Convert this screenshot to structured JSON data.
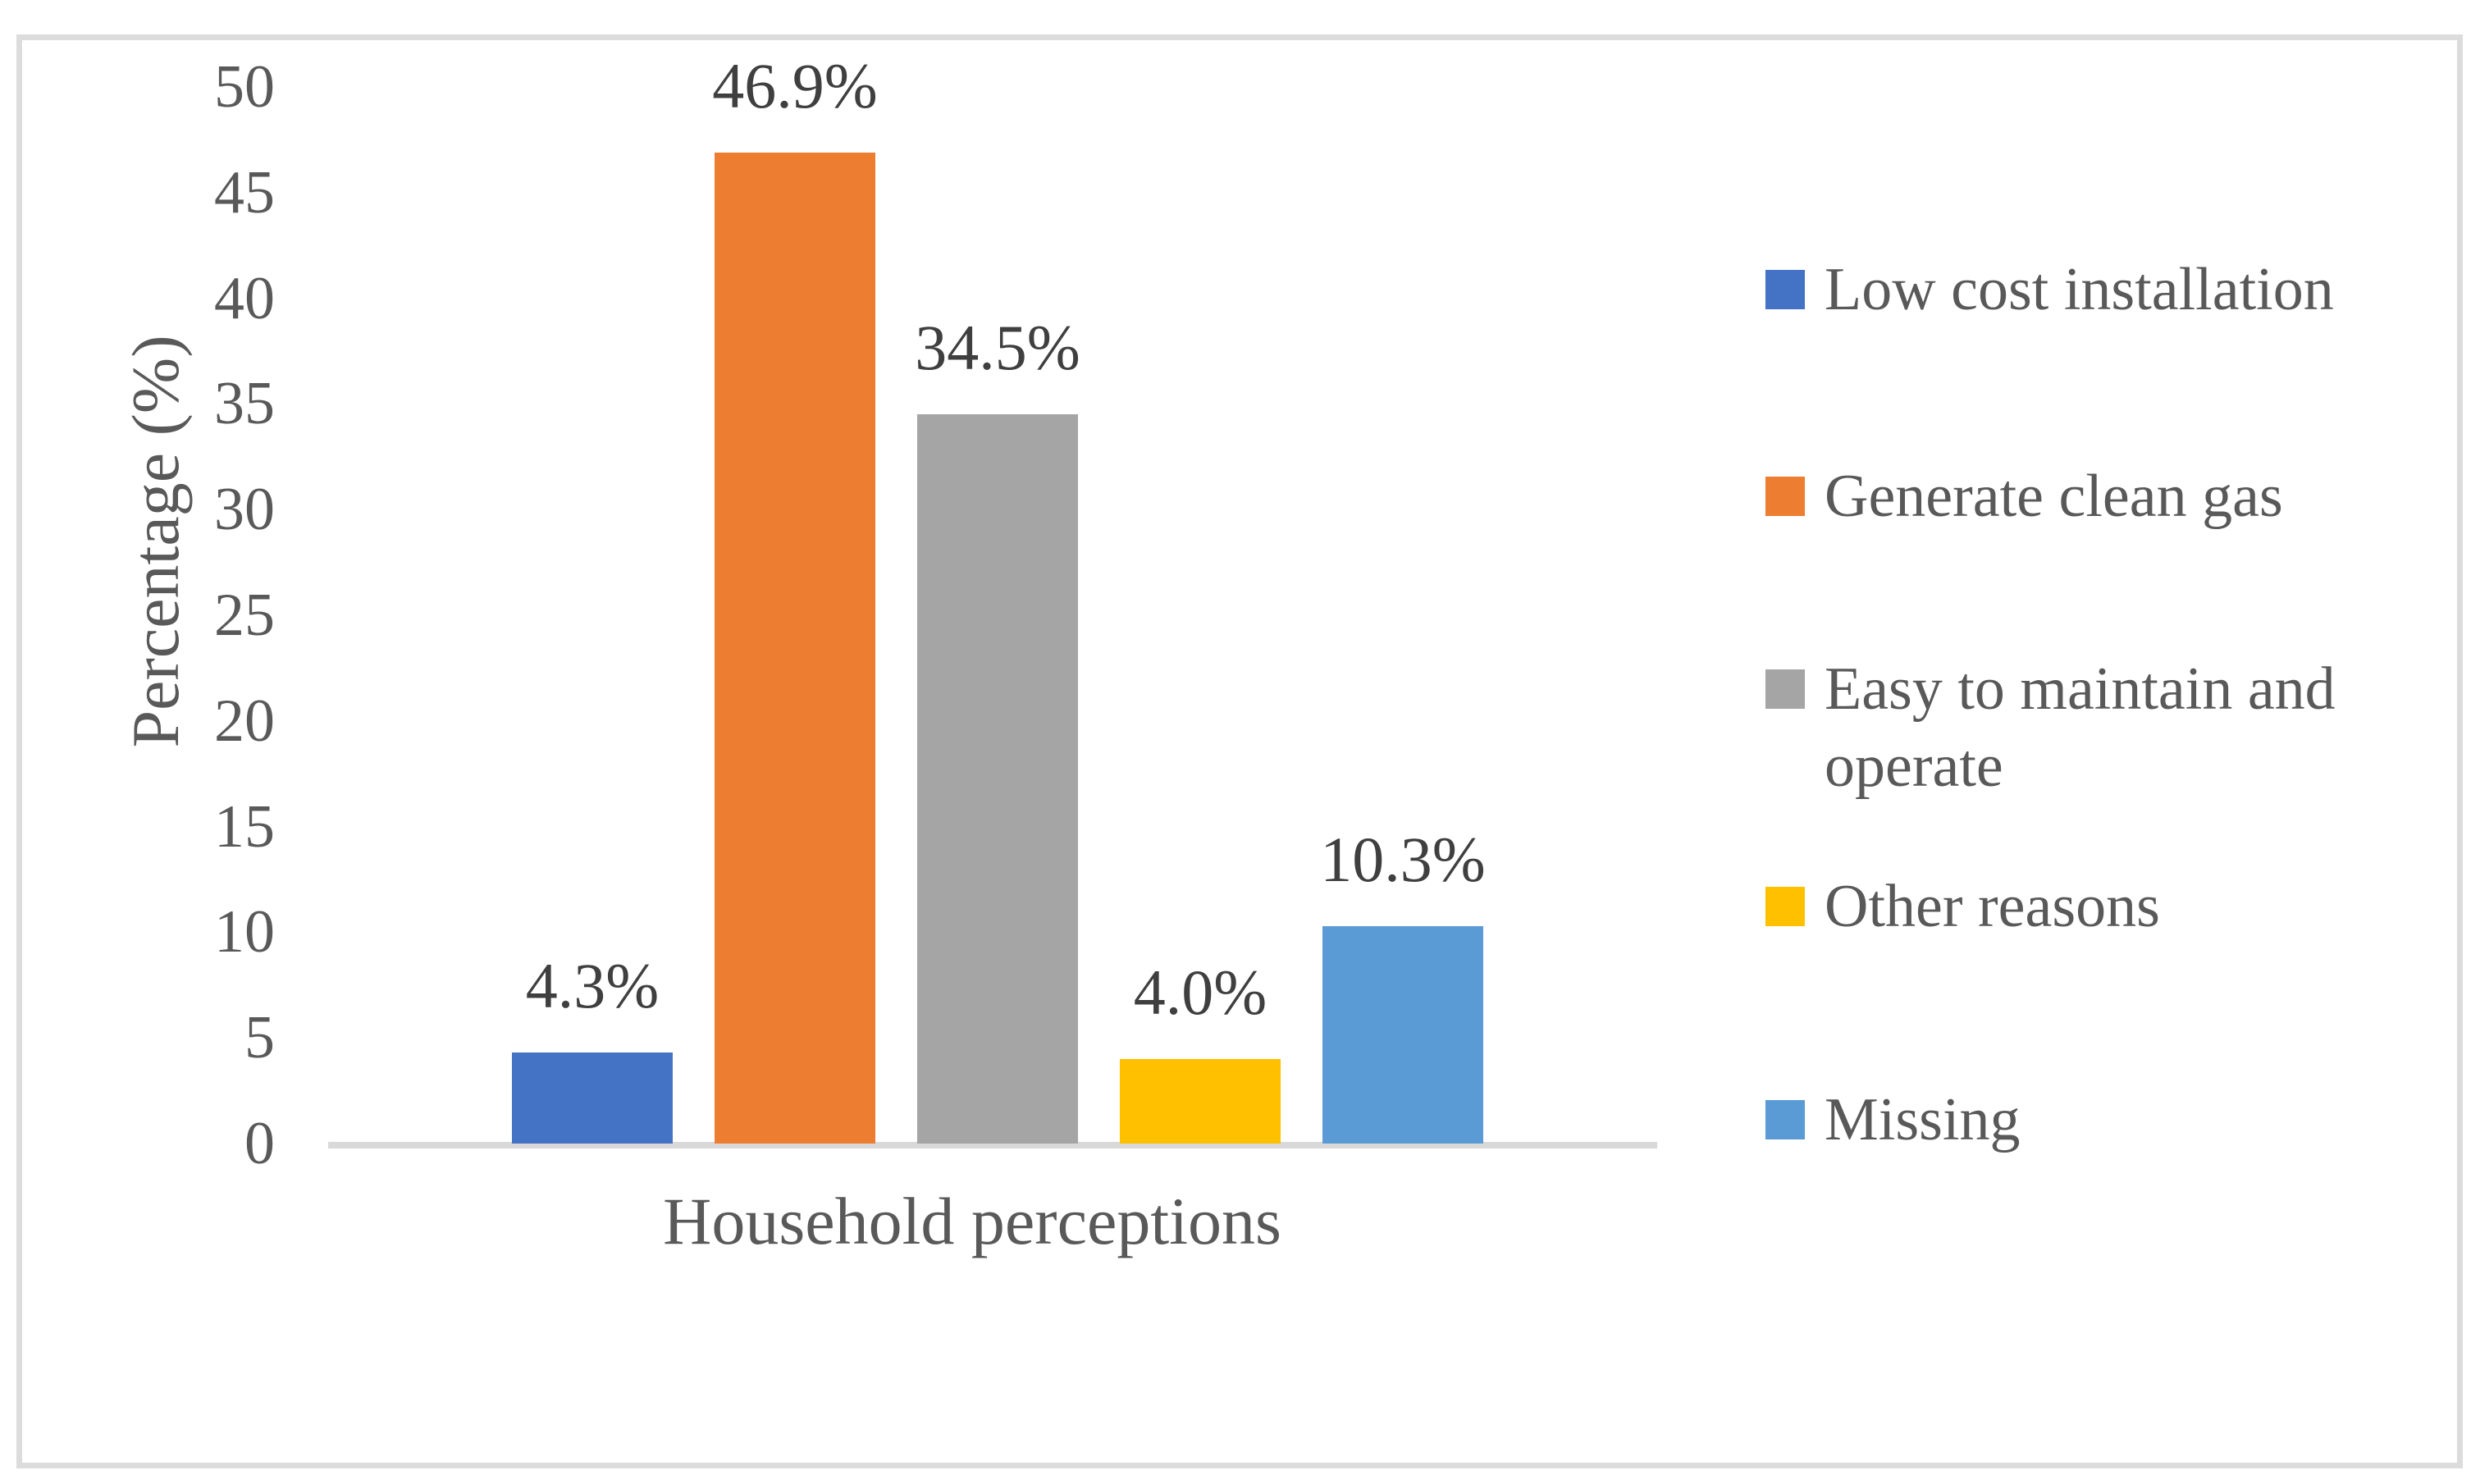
{
  "chart_data": {
    "type": "bar",
    "categories": [
      "Low cost installation",
      "Generate clean gas",
      "Easy to maintain and operate",
      "Other reasons",
      "Missing"
    ],
    "values": [
      4.3,
      46.9,
      34.5,
      4.0,
      10.3
    ],
    "data_labels": [
      "4.3%",
      "46.9%",
      "34.5%",
      "4.0%",
      "10.3%"
    ],
    "colors": [
      "#4472C4",
      "#ED7D31",
      "#A5A5A5",
      "#FFC000",
      "#5B9BD5"
    ],
    "title": "",
    "xlabel": "Household perceptions",
    "ylabel": "Percentage (%)",
    "ylim": [
      0,
      50
    ],
    "yticks": [
      0,
      5,
      10,
      15,
      20,
      25,
      30,
      35,
      40,
      45,
      50
    ],
    "grid": false,
    "legend_position": "right",
    "legend": [
      {
        "label": "Low cost installation",
        "color": "#4472C4"
      },
      {
        "label": "Generate clean gas",
        "color": "#ED7D31"
      },
      {
        "label": "Easy to maintain and operate",
        "color": "#A5A5A5"
      },
      {
        "label": "Other reasons",
        "color": "#FFC000"
      },
      {
        "label": "Missing",
        "color": "#5B9BD5"
      }
    ],
    "axis_line_color": "#D9D9D9",
    "text_color": "#595959",
    "data_label_color": "#3F3F3F"
  }
}
